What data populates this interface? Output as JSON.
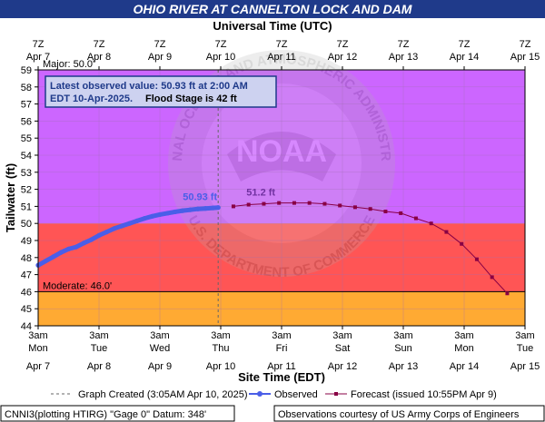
{
  "chart_data": {
    "type": "line",
    "title": "OHIO RIVER AT CANNELTON LOCK AND DAM",
    "top_axis_title": "Universal Time (UTC)",
    "xlabel": "Site Time (EDT)",
    "ylabel": "Tailwater (ft)",
    "ylim": [
      44,
      59
    ],
    "y_ticks": [
      44,
      45,
      46,
      47,
      48,
      49,
      50,
      51,
      52,
      53,
      54,
      55,
      56,
      57,
      58,
      59
    ],
    "x_range_days": [
      "Apr 7",
      "Apr 15"
    ],
    "bottom_ticks": [
      {
        "time": "3am",
        "day": "Mon",
        "date": "Apr 7"
      },
      {
        "time": "3am",
        "day": "Tue",
        "date": "Apr 8"
      },
      {
        "time": "3am",
        "day": "Wed",
        "date": "Apr 9"
      },
      {
        "time": "3am",
        "day": "Thu",
        "date": "Apr 10"
      },
      {
        "time": "3am",
        "day": "Fri",
        "date": "Apr 11"
      },
      {
        "time": "3am",
        "day": "Sat",
        "date": "Apr 12"
      },
      {
        "time": "3am",
        "day": "Sun",
        "date": "Apr 13"
      },
      {
        "time": "3am",
        "day": "Mon",
        "date": "Apr 14"
      },
      {
        "time": "3am",
        "day": "Tue",
        "date": "Apr 15"
      }
    ],
    "top_ticks": [
      {
        "time": "7Z",
        "date": "Apr 7"
      },
      {
        "time": "7Z",
        "date": "Apr 8"
      },
      {
        "time": "7Z",
        "date": "Apr 9"
      },
      {
        "time": "7Z",
        "date": "Apr 10"
      },
      {
        "time": "7Z",
        "date": "Apr 11"
      },
      {
        "time": "7Z",
        "date": "Apr 12"
      },
      {
        "time": "7Z",
        "date": "Apr 13"
      },
      {
        "time": "7Z",
        "date": "Apr 14"
      },
      {
        "time": "7Z",
        "date": "Apr 15"
      }
    ],
    "bands": [
      {
        "label": "Major: 50.0'",
        "from": 50,
        "to": 59,
        "color": "#cc66ff"
      },
      {
        "label": "",
        "from": 46,
        "to": 50,
        "color": "#ff5555"
      },
      {
        "label": "Moderate: 46.0'",
        "from": 44,
        "to": 46,
        "color": "#ffaa33"
      }
    ],
    "series": [
      {
        "name": "Observed",
        "style": "thick-line",
        "color": "#4a5ee8",
        "x_days": [
          0,
          0.125,
          0.25,
          0.375,
          0.5,
          0.625,
          0.75,
          0.875,
          1,
          1.125,
          1.25,
          1.375,
          1.5,
          1.625,
          1.75,
          1.875,
          2,
          2.125,
          2.25,
          2.375,
          2.5,
          2.625,
          2.75,
          2.875,
          2.958
        ],
        "values": [
          47.55,
          47.8,
          48.05,
          48.3,
          48.5,
          48.62,
          48.85,
          49.05,
          49.3,
          49.5,
          49.7,
          49.85,
          50.0,
          50.15,
          50.3,
          50.42,
          50.52,
          50.6,
          50.68,
          50.75,
          50.8,
          50.85,
          50.88,
          50.91,
          50.93
        ]
      },
      {
        "name": "Forecast",
        "style": "line-with-markers",
        "color": "#880044",
        "x_days": [
          3.208,
          3.458,
          3.708,
          3.958,
          4.208,
          4.458,
          4.708,
          4.958,
          5.208,
          5.458,
          5.708,
          5.958,
          6.208,
          6.458,
          6.708,
          6.958,
          7.208,
          7.458,
          7.708
        ],
        "values": [
          51.0,
          51.1,
          51.15,
          51.2,
          51.2,
          51.2,
          51.15,
          51.05,
          50.95,
          50.85,
          50.7,
          50.6,
          50.3,
          50.0,
          49.5,
          48.8,
          47.9,
          46.85,
          45.9
        ]
      }
    ],
    "annotations": [
      {
        "text": "50.93 ft",
        "x_day": 2.958,
        "y": 50.93,
        "color": "#4a5ee8"
      },
      {
        "text": "51.2 ft",
        "x_day": 3.958,
        "y": 51.2,
        "color": "#7030a0"
      }
    ],
    "created_marker_x_day": 2.958,
    "info_box": {
      "line1": "Latest observed value: 50.93 ft at 2:00 AM",
      "line2_a": "EDT 10-Apr-2025.",
      "line2_b": "Flood Stage is 42 ft"
    },
    "legend": {
      "created": "Graph Created (3:05AM Apr 10, 2025)",
      "observed": "Observed",
      "forecast": "Forecast (issued 10:55PM Apr 9)"
    },
    "footer": {
      "left": "CNNI3(plotting HTIRG) \"Gage 0\" Datum: 348'",
      "right": "Observations courtesy of US Army Corps of Engineers"
    },
    "watermark": {
      "logo_text": "NOAA",
      "ring_text_top": "NATIONAL OCEANIC AND ATMOSPHERIC ADMINISTRATION",
      "ring_text_bottom": "U.S. DEPARTMENT OF COMMERCE"
    }
  }
}
